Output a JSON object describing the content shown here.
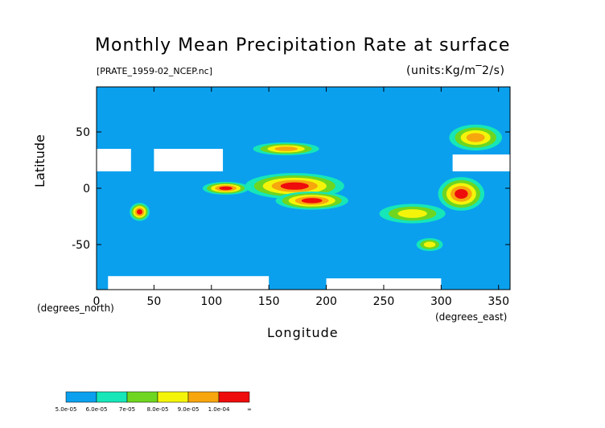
{
  "chart_data": {
    "type": "heatmap",
    "title": "Monthly Mean Precipitation Rate at surface",
    "file": "[PRATE_1959-02_NCEP.nc]",
    "units": "(units:Kg/m‾2/s)",
    "xlabel": "Longitude",
    "ylabel": "Latitude",
    "x_unit": "(degrees_east)",
    "y_unit": "(degrees_north)",
    "xlim": [
      0,
      360
    ],
    "ylim": [
      -90,
      90
    ],
    "x_ticks": [
      0,
      50,
      100,
      150,
      200,
      250,
      300,
      350
    ],
    "y_ticks": [
      -50,
      0,
      50
    ],
    "colorbar": {
      "labels": [
        "5.0e-05",
        "6.0e-05",
        "7e-05",
        "8.0e-05",
        "9.0e-05",
        "1.0e-04",
        "∞"
      ],
      "colors": [
        "#0aa0ee",
        "#16e6b8",
        "#6ed620",
        "#f4f40a",
        "#f7a60e",
        "#ee0c0c"
      ]
    },
    "background_color": "#0aa0ee",
    "regions": [
      {
        "level": 5,
        "lon": [
          135,
          210
        ],
        "lat": [
          -8,
          12
        ]
      },
      {
        "level": 5,
        "lon": [
          160,
          215
        ],
        "lat": [
          -18,
          -4
        ]
      },
      {
        "level": 5,
        "lon": [
          300,
          335
        ],
        "lat": [
          -18,
          8
        ]
      },
      {
        "level": 5,
        "lon": [
          30,
          45
        ],
        "lat": [
          -28,
          -14
        ]
      },
      {
        "level": 5,
        "lon": [
          95,
          130
        ],
        "lat": [
          -5,
          5
        ]
      },
      {
        "level": 4,
        "lon": [
          310,
          350
        ],
        "lat": [
          35,
          55
        ]
      },
      {
        "level": 4,
        "lon": [
          140,
          190
        ],
        "lat": [
          30,
          40
        ]
      },
      {
        "level": 3,
        "lon": [
          250,
          300
        ],
        "lat": [
          -30,
          -15
        ]
      },
      {
        "level": 3,
        "lon": [
          280,
          300
        ],
        "lat": [
          -55,
          -45
        ]
      }
    ],
    "missing_regions": [
      {
        "lon": [
          0,
          30
        ],
        "lat": [
          15,
          35
        ]
      },
      {
        "lon": [
          50,
          110
        ],
        "lat": [
          15,
          35
        ]
      },
      {
        "lon": [
          310,
          360
        ],
        "lat": [
          15,
          30
        ]
      },
      {
        "lon": [
          10,
          150
        ],
        "lat": [
          -90,
          -78
        ]
      },
      {
        "lon": [
          200,
          300
        ],
        "lat": [
          -90,
          -80
        ]
      }
    ]
  }
}
